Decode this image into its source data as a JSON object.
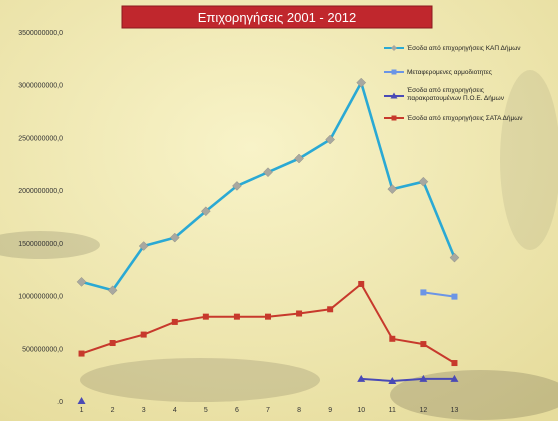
{
  "chart_data": {
    "type": "line",
    "title": "Επιχορηγήσεις 2001 - 2012",
    "xlabel": "",
    "ylabel": "",
    "categories": [
      "1",
      "2",
      "3",
      "4",
      "5",
      "6",
      "7",
      "8",
      "9",
      "10",
      "11",
      "12",
      "13"
    ],
    "y_tick_labels": [
      ".0",
      "500000000,0",
      "1000000000,0",
      "1500000000,0",
      "2000000000,0",
      "2500000000,0",
      "3000000000,0",
      "3500000000,0"
    ],
    "ylim": [
      0,
      3500000000
    ],
    "grid": false,
    "legend_position": "right",
    "series": [
      {
        "name": "Έσοδα από επιχορηγήσεις ΚΑΠ Δήμων",
        "color": "#2aa9d4",
        "marker": "diamond",
        "values": [
          1130000000,
          1050000000,
          1470000000,
          1550000000,
          1800000000,
          2040000000,
          2170000000,
          2300000000,
          2480000000,
          3020000000,
          2010000000,
          2080000000,
          1360000000
        ]
      },
      {
        "name": "Μεταφερομενες αρμοδιοτητες",
        "color": "#6b95e6",
        "marker": "square",
        "values": [
          null,
          null,
          null,
          null,
          null,
          null,
          null,
          null,
          null,
          null,
          null,
          1030000000,
          990000000
        ]
      },
      {
        "name": "Έσοδα από επιχορηγήσεις παρακρατουμένων Π.Ο.Ε. Δήμων",
        "color": "#4a4ab5",
        "marker": "triangle",
        "values": [
          0,
          null,
          null,
          null,
          null,
          null,
          null,
          null,
          null,
          210000000,
          190000000,
          210000000,
          210000000
        ]
      },
      {
        "name": "Έσοδα από επιχορηγήσεις ΣΑΤΑ Δήμων",
        "color": "#c7392c",
        "marker": "square",
        "values": [
          450000000,
          550000000,
          630000000,
          750000000,
          800000000,
          800000000,
          800000000,
          830000000,
          870000000,
          1110000000,
          590000000,
          540000000,
          360000000
        ]
      }
    ]
  }
}
